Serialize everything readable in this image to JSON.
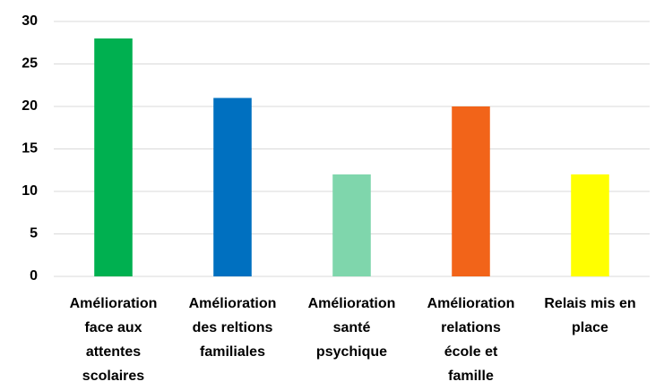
{
  "chart_data": {
    "type": "bar",
    "categories": [
      "Amélioration face aux attentes scolaires",
      "Amélioration des reltions familiales",
      "Amélioration santé psychique",
      "Amélioration relations école et famille",
      "Relais mis en place"
    ],
    "values": [
      28,
      21,
      12,
      20,
      12
    ],
    "colors": [
      "#00b050",
      "#0070c0",
      "#7fd6ac",
      "#f26419",
      "#ffff00"
    ],
    "ylim": [
      0,
      30
    ],
    "yticks": [
      0,
      5,
      10,
      15,
      20,
      25,
      30
    ],
    "grid": true
  }
}
